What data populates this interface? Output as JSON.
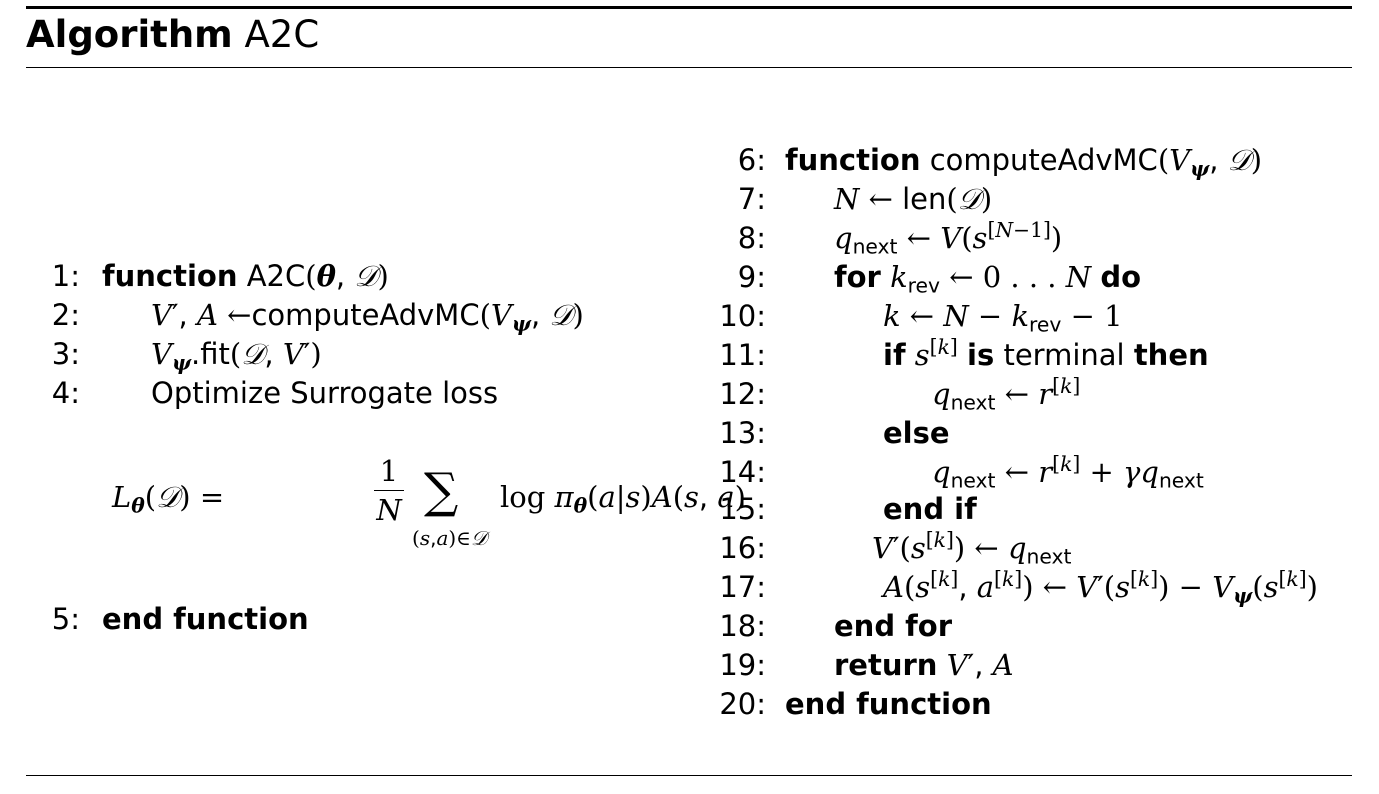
{
  "header": {
    "label": "Algorithm",
    "name": "A2C"
  },
  "left": {
    "lines": [
      {
        "num": "1:",
        "kw": "function",
        "text": "A2C"
      },
      {
        "num": "2:",
        "text": "computeAdvMC"
      },
      {
        "num": "3:",
        "text": ".fit"
      },
      {
        "num": "4:",
        "text": "Optimize Surrogate loss"
      },
      {
        "num": "5:",
        "kw": "end function"
      }
    ],
    "equation": {
      "numerator": "1",
      "denominator": "N",
      "operator": "log"
    }
  },
  "right": {
    "lines": [
      {
        "num": "6:",
        "kw": "function",
        "text": "computeAdvMC"
      },
      {
        "num": "7:",
        "text": "len"
      },
      {
        "num": "8:"
      },
      {
        "num": "9:",
        "kw": "for",
        "kw2": "do"
      },
      {
        "num": "10:"
      },
      {
        "num": "11:",
        "kw": "if",
        "text": "is terminal",
        "kw2": "then"
      },
      {
        "num": "12:"
      },
      {
        "num": "13:",
        "kw": "else"
      },
      {
        "num": "14:"
      },
      {
        "num": "15:",
        "kw": "end if"
      },
      {
        "num": "16:"
      },
      {
        "num": "17:"
      },
      {
        "num": "18:",
        "kw": "end for"
      },
      {
        "num": "19:",
        "kw": "return"
      },
      {
        "num": "20:",
        "kw": "end function"
      }
    ]
  }
}
